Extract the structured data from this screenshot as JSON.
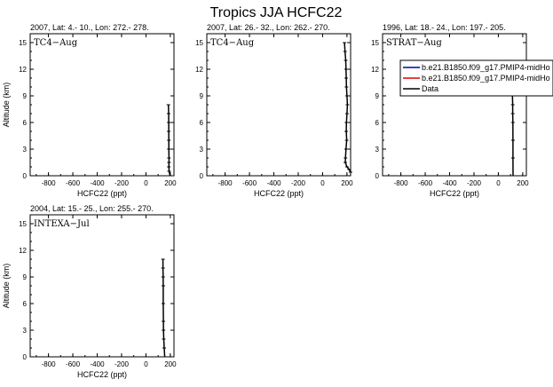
{
  "title": "Tropics JJA HCFC22",
  "colors": {
    "model_1": "#0000b0",
    "model_2": "#e00000",
    "data": "#000000"
  },
  "legend": {
    "placement": "top-right of panel 3, clipped at image edge",
    "entries": [
      {
        "label": "b.e21.B1850.f09_g17.PMIP4-midHo",
        "color_key": "model_1"
      },
      {
        "label": "b.e21.B1850.f09_g17.PMIP4-midHo",
        "color_key": "model_2"
      },
      {
        "label": "Data",
        "color_key": "data"
      }
    ]
  },
  "chart_data": [
    {
      "type": "line",
      "subtitle": "2007, Lat: 4.- 10., Lon: 272.- 278.",
      "campaign": "TC4−Aug",
      "xlabel": "HCFC22 (ppt)",
      "ylabel": "Altitude (km)",
      "xlim": [
        -950,
        230
      ],
      "ylim": [
        0,
        16
      ],
      "xticks": [
        "-800",
        "-600",
        "-400",
        "-200",
        "0",
        "200"
      ],
      "yticks": [
        "0",
        "3",
        "6",
        "9",
        "12",
        "15"
      ],
      "series": [
        {
          "color_key": "data",
          "x": [
            184,
            186,
            187,
            187,
            188,
            188,
            189,
            189,
            188,
            190,
            198
          ],
          "y": [
            8,
            7,
            6,
            5,
            4,
            3,
            2,
            1.5,
            1,
            0.5,
            0
          ]
        }
      ]
    },
    {
      "type": "line",
      "subtitle": "2007, Lat: 26.- 32., Lon: 262.- 270.",
      "campaign": "TC4−Aug",
      "xlabel": "HCFC22 (ppt)",
      "ylabel": "",
      "xlim": [
        -950,
        230
      ],
      "ylim": [
        0,
        16
      ],
      "xticks": [
        "-800",
        "-600",
        "-400",
        "-200",
        "0",
        "200"
      ],
      "yticks": [
        "0",
        "3",
        "6",
        "9",
        "12",
        "15"
      ],
      "series": [
        {
          "color_key": "data",
          "x": [
            180,
            184,
            190,
            192,
            194,
            196,
            200,
            204,
            200,
            196,
            194,
            198,
            192,
            188,
            186,
            200,
            218,
            230
          ],
          "y": [
            15,
            14,
            13,
            12,
            11,
            10,
            9,
            8,
            7,
            6,
            5,
            4,
            3,
            2,
            1.5,
            1,
            0.7,
            0.4
          ]
        }
      ]
    },
    {
      "type": "line",
      "subtitle": "1996, Lat: 18.- 24., Lon: 197.- 205.",
      "campaign": "STRAT−Aug",
      "xlabel": "HCFC22 (ppt)",
      "ylabel": "",
      "xlim": [
        -950,
        230
      ],
      "ylim": [
        0,
        16
      ],
      "xticks": [
        "-800",
        "-600",
        "-400",
        "-200",
        "0",
        "200"
      ],
      "yticks": [
        "0",
        "3",
        "6",
        "9",
        "12",
        "15"
      ],
      "series": [
        {
          "color_key": "data",
          "x": [
            108,
            112,
            114,
            116,
            118,
            118,
            119,
            120,
            120,
            121
          ],
          "y": [
            12,
            11,
            10,
            9,
            8,
            7,
            6,
            4,
            2,
            0
          ]
        }
      ]
    },
    {
      "type": "line",
      "subtitle": "2004, Lat: 15.- 25., Lon: 255.- 270.",
      "campaign": "INTEXA−Jul",
      "xlabel": "HCFC22 (ppt)",
      "ylabel": "Altitude (km)",
      "xlim": [
        -950,
        230
      ],
      "ylim": [
        0,
        16
      ],
      "xticks": [
        "-800",
        "-600",
        "-400",
        "-200",
        "0",
        "200"
      ],
      "yticks": [
        "0",
        "3",
        "6",
        "9",
        "12",
        "15"
      ],
      "series": [
        {
          "color_key": "data",
          "x": [
            140,
            140,
            141,
            142,
            142,
            143,
            144,
            146,
            150,
            154
          ],
          "y": [
            11,
            10,
            9,
            8,
            6,
            4,
            3,
            2,
            1,
            0
          ]
        }
      ]
    }
  ]
}
